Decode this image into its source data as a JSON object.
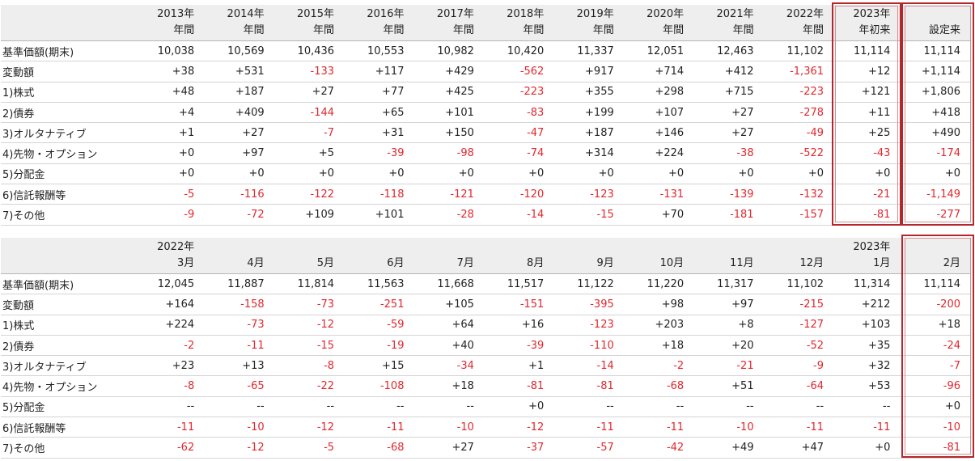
{
  "annual_table": {
    "header": [
      [
        "2013年",
        "年間"
      ],
      [
        "2014年",
        "年間"
      ],
      [
        "2015年",
        "年間"
      ],
      [
        "2016年",
        "年間"
      ],
      [
        "2017年",
        "年間"
      ],
      [
        "2018年",
        "年間"
      ],
      [
        "2019年",
        "年間"
      ],
      [
        "2020年",
        "年間"
      ],
      [
        "2021年",
        "年間"
      ],
      [
        "2022年",
        "年間"
      ],
      [
        "2023年",
        "年初来"
      ],
      [
        "",
        "設定来"
      ]
    ],
    "rows": [
      {
        "label": "基準価額(期末)",
        "values": [
          "10,038",
          "10,569",
          "10,436",
          "10,553",
          "10,982",
          "10,420",
          "11,337",
          "12,051",
          "12,463",
          "11,102",
          "11,114",
          "11,114"
        ]
      },
      {
        "label": "変動額",
        "values": [
          "+38",
          "+531",
          "-133",
          "+117",
          "+429",
          "-562",
          "+917",
          "+714",
          "+412",
          "-1,361",
          "+12",
          "+1,114"
        ]
      },
      {
        "label": "1)株式",
        "values": [
          "+48",
          "+187",
          "+27",
          "+77",
          "+425",
          "-223",
          "+355",
          "+298",
          "+715",
          "-223",
          "+121",
          "+1,806"
        ]
      },
      {
        "label": "2)債券",
        "values": [
          "+4",
          "+409",
          "-144",
          "+65",
          "+101",
          "-83",
          "+199",
          "+107",
          "+27",
          "-278",
          "+11",
          "+418"
        ]
      },
      {
        "label": "3)オルタナティブ",
        "values": [
          "+1",
          "+27",
          "-7",
          "+31",
          "+150",
          "-47",
          "+187",
          "+146",
          "+27",
          "-49",
          "+25",
          "+490"
        ]
      },
      {
        "label": "4)先物・オプション",
        "values": [
          "+0",
          "+97",
          "+5",
          "-39",
          "-98",
          "-74",
          "+314",
          "+224",
          "-38",
          "-522",
          "-43",
          "-174"
        ]
      },
      {
        "label": "5)分配金",
        "values": [
          "+0",
          "+0",
          "+0",
          "+0",
          "+0",
          "+0",
          "+0",
          "+0",
          "+0",
          "+0",
          "+0",
          "+0"
        ]
      },
      {
        "label": "6)信託報酬等",
        "values": [
          "-5",
          "-116",
          "-122",
          "-118",
          "-121",
          "-120",
          "-123",
          "-131",
          "-139",
          "-132",
          "-21",
          "-1,149"
        ]
      },
      {
        "label": "7)その他",
        "values": [
          "-9",
          "-72",
          "+109",
          "+101",
          "-28",
          "-14",
          "-15",
          "+70",
          "-181",
          "-157",
          "-81",
          "-277"
        ]
      }
    ]
  },
  "monthly_table": {
    "header": [
      [
        "2022年",
        "3月"
      ],
      [
        "",
        "4月"
      ],
      [
        "",
        "5月"
      ],
      [
        "",
        "6月"
      ],
      [
        "",
        "7月"
      ],
      [
        "",
        "8月"
      ],
      [
        "",
        "9月"
      ],
      [
        "",
        "10月"
      ],
      [
        "",
        "11月"
      ],
      [
        "",
        "12月"
      ],
      [
        "2023年",
        "1月"
      ],
      [
        "",
        "2月"
      ]
    ],
    "rows": [
      {
        "label": "基準価額(期末)",
        "values": [
          "12,045",
          "11,887",
          "11,814",
          "11,563",
          "11,668",
          "11,517",
          "11,122",
          "11,220",
          "11,317",
          "11,102",
          "11,314",
          "11,114"
        ]
      },
      {
        "label": "変動額",
        "values": [
          "+164",
          "-158",
          "-73",
          "-251",
          "+105",
          "-151",
          "-395",
          "+98",
          "+97",
          "-215",
          "+212",
          "-200"
        ]
      },
      {
        "label": "1)株式",
        "values": [
          "+224",
          "-73",
          "-12",
          "-59",
          "+64",
          "+16",
          "-123",
          "+203",
          "+8",
          "-127",
          "+103",
          "+18"
        ]
      },
      {
        "label": "2)債券",
        "values": [
          "-2",
          "-11",
          "-15",
          "-19",
          "+40",
          "-39",
          "-110",
          "+18",
          "+20",
          "-52",
          "+35",
          "-24"
        ]
      },
      {
        "label": "3)オルタナティブ",
        "values": [
          "+23",
          "+13",
          "-8",
          "+15",
          "-34",
          "+1",
          "-14",
          "-2",
          "-21",
          "-9",
          "+32",
          "-7"
        ]
      },
      {
        "label": "4)先物・オプション",
        "values": [
          "-8",
          "-65",
          "-22",
          "-108",
          "+18",
          "-81",
          "-81",
          "-68",
          "+51",
          "-64",
          "+53",
          "-96"
        ]
      },
      {
        "label": "5)分配金",
        "values": [
          "--",
          "--",
          "--",
          "--",
          "--",
          "+0",
          "--",
          "--",
          "--",
          "--",
          "--",
          "+0"
        ]
      },
      {
        "label": "6)信託報酬等",
        "values": [
          "-11",
          "-10",
          "-12",
          "-11",
          "-10",
          "-12",
          "-11",
          "-11",
          "-10",
          "-11",
          "-11",
          "-10"
        ]
      },
      {
        "label": "7)その他",
        "values": [
          "-62",
          "-12",
          "-5",
          "-68",
          "+27",
          "-37",
          "-57",
          "-42",
          "+49",
          "+47",
          "+0",
          "-81"
        ]
      }
    ]
  },
  "colors": {
    "negative": "#e0272e",
    "highlight_frame": "#b3282d",
    "header_bg": "#eeeeee"
  }
}
